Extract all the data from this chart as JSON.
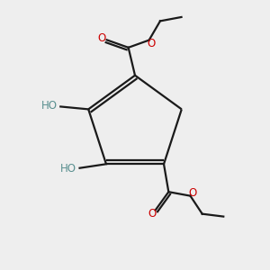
{
  "background_color": "#eeeeee",
  "bond_color": "#1a1a1a",
  "oxygen_color": "#cc0000",
  "ho_color": "#5a9090",
  "figsize": [
    3.0,
    3.0
  ],
  "dpi": 100,
  "xlim": [
    0,
    10
  ],
  "ylim": [
    0,
    10
  ]
}
